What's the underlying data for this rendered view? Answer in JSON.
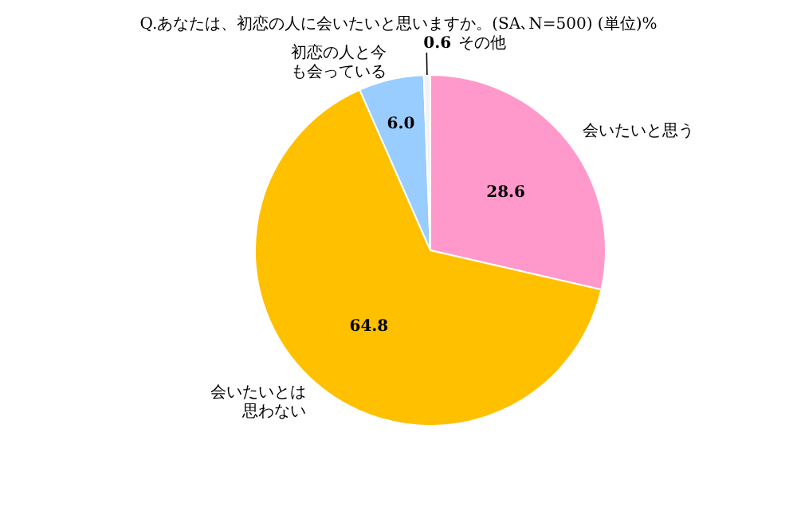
{
  "chart_data": {
    "type": "pie",
    "title": "Q.あなたは、初恋の人に会いたいと思いますか。(SA､N=500) (単位)%",
    "categories": [
      "会いたいと思う",
      "会いたいとは思わない",
      "初恋の人と今も会っている",
      "その他"
    ],
    "values": [
      28.6,
      64.8,
      6.0,
      0.6
    ],
    "value_labels": [
      "28.6",
      "64.8",
      "6.0",
      "0.6"
    ],
    "colors": [
      "#ff99cc",
      "#ffc000",
      "#99ccff",
      "#f2f2f2"
    ],
    "legend": false
  }
}
